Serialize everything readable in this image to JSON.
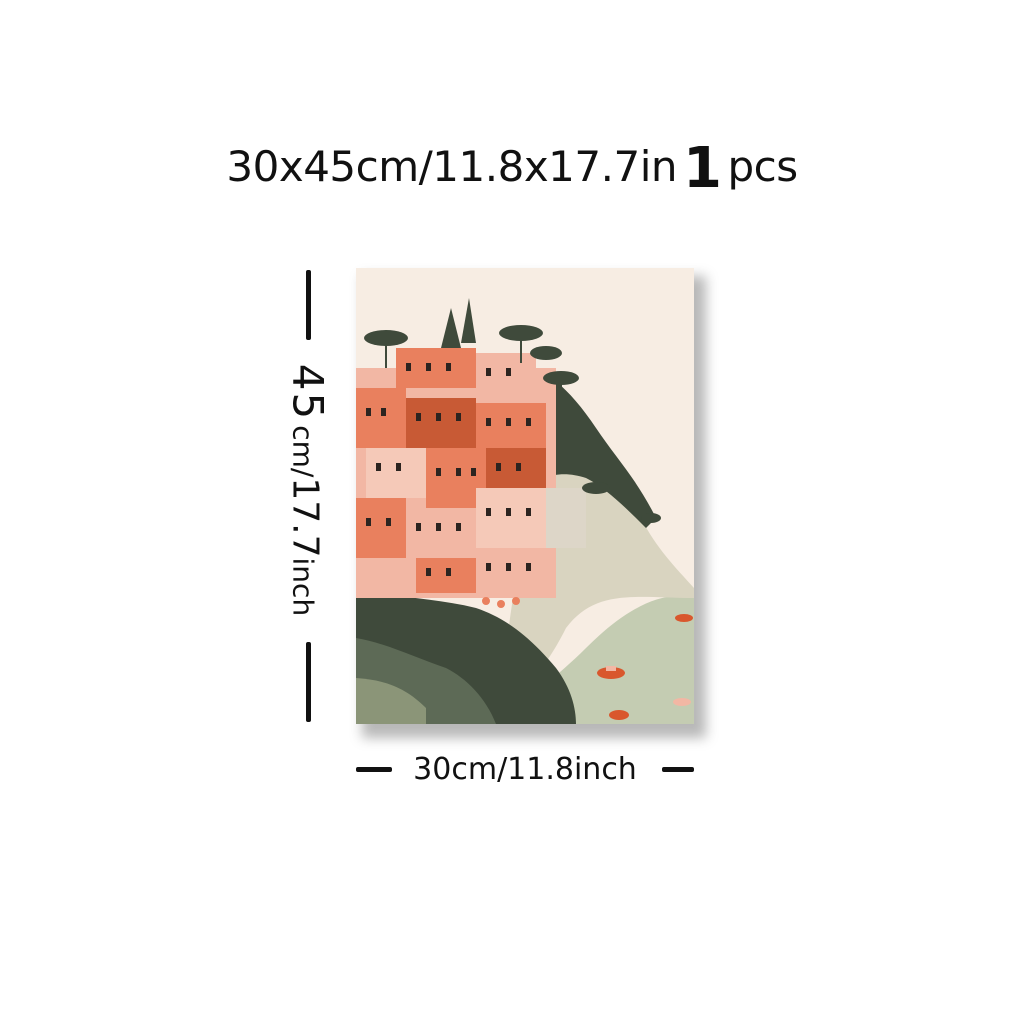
{
  "title": {
    "size": "30x45cm/11.8x17.7in",
    "quantity": "1",
    "unit": "pcs"
  },
  "height_label": {
    "number": "45",
    "unit_a": "cm/",
    "number_b": "17.7",
    "unit_b": "inch"
  },
  "width_label": "30cm/11.8inch",
  "artwork": {
    "subject": "coastal-cliff-village-painting",
    "colors": {
      "sky": "#f7ede3",
      "cliff": "#d9d4c0",
      "dark_green": "#3f4a3b",
      "mid_green": "#5d6a56",
      "water": "#c4ccb2",
      "coral": "#e9805e",
      "pink": "#f2b7a4",
      "rust": "#c85a35",
      "boat": "#d9572d"
    }
  }
}
